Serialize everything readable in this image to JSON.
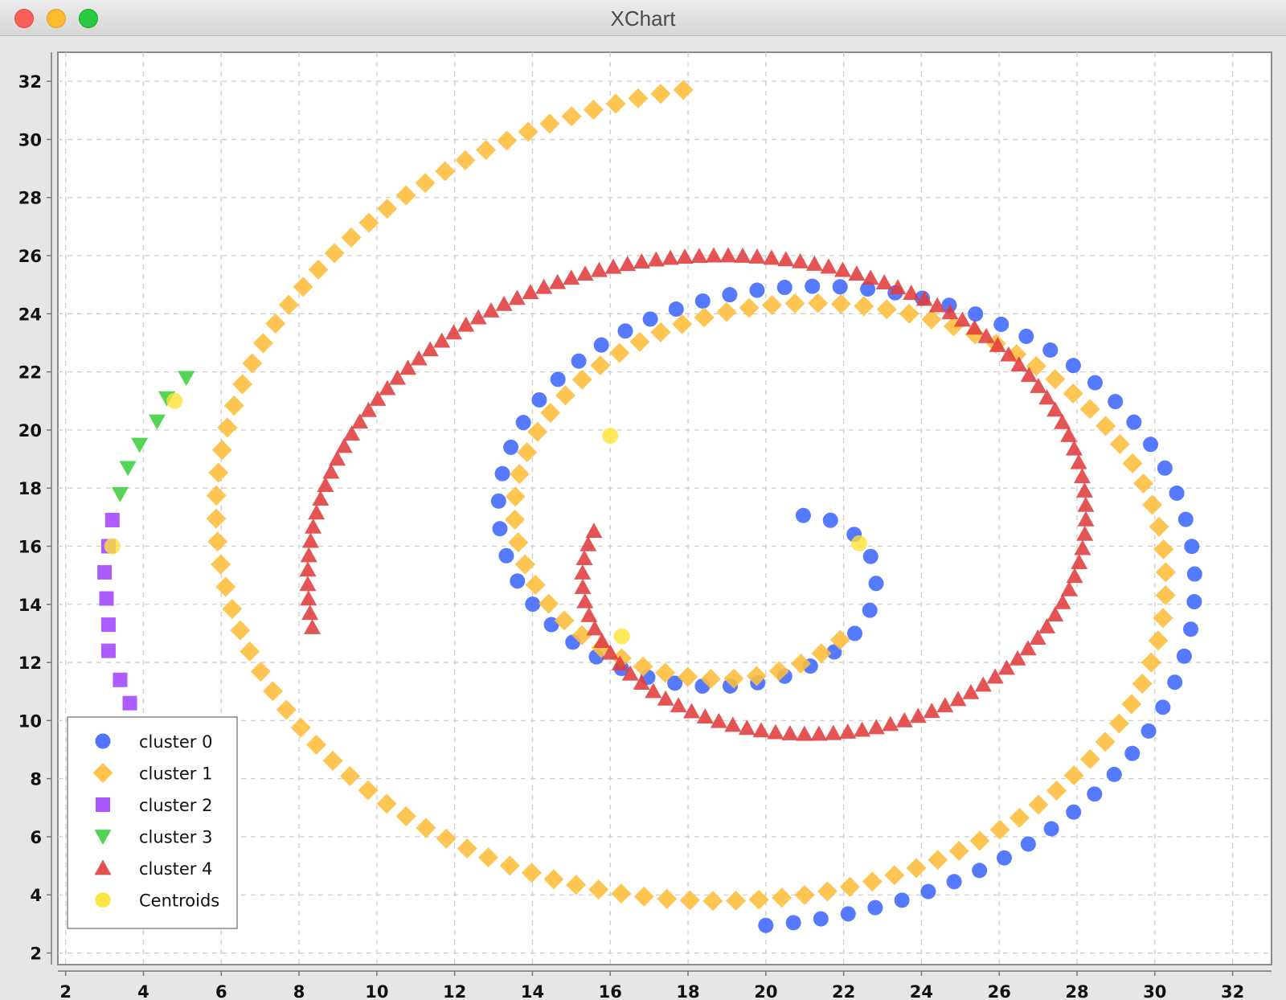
{
  "window": {
    "title": "XChart"
  },
  "chart_data": {
    "type": "scatter",
    "title": "",
    "xlabel": "",
    "ylabel": "",
    "xlim": [
      1.8,
      33.0
    ],
    "ylim": [
      1.6,
      33.0
    ],
    "x_ticks": [
      2,
      4,
      6,
      8,
      10,
      12,
      14,
      16,
      18,
      20,
      22,
      24,
      26,
      28,
      30,
      32
    ],
    "y_ticks": [
      2,
      4,
      6,
      8,
      10,
      12,
      14,
      16,
      18,
      20,
      22,
      24,
      26,
      28,
      30,
      32
    ],
    "grid": true,
    "legend_position": "bottom-left",
    "series": [
      {
        "name": "cluster 0",
        "marker": "circle",
        "color": "#3d67ff",
        "spiral": {
          "a0": -1.5708,
          "r0": 13.05,
          "a1": 7.115,
          "r1": 1.43,
          "cx": 20.0,
          "cy": 16.0,
          "n": 80
        }
      },
      {
        "name": "cluster 1",
        "marker": "diamond",
        "color": "#ffbd3b",
        "spiral": {
          "a0": 1.705,
          "r0": 15.85,
          "a1": 11.53,
          "r1": 3.75,
          "cx": 20.0,
          "cy": 16.0,
          "n": 145
        }
      },
      {
        "name": "cluster 2",
        "marker": "square",
        "color": "#a146ff",
        "points": [
          [
            3.2,
            16.9
          ],
          [
            3.1,
            16.0
          ],
          [
            3.0,
            15.1
          ],
          [
            3.05,
            14.2
          ],
          [
            3.1,
            13.3
          ],
          [
            3.1,
            12.4
          ],
          [
            3.4,
            11.4
          ],
          [
            3.65,
            10.6
          ],
          [
            3.95,
            9.6
          ]
        ]
      },
      {
        "name": "cluster 3",
        "marker": "triangle-down",
        "color": "#3ecf3e",
        "points": [
          [
            5.1,
            21.8
          ],
          [
            4.6,
            21.1
          ],
          [
            4.35,
            20.3
          ],
          [
            3.9,
            19.5
          ],
          [
            3.6,
            18.7
          ],
          [
            3.4,
            17.8
          ]
        ]
      },
      {
        "name": "cluster 4",
        "marker": "triangle-up",
        "color": "#e03c3c",
        "spiral": {
          "a0": 3.025,
          "r0": 4.45,
          "a1": 9.66,
          "r1": 11.99,
          "cx": 20.0,
          "cy": 16.0,
          "n": 130
        }
      },
      {
        "name": "Centroids",
        "marker": "circle",
        "color": "#ffe233",
        "points": [
          [
            4.8,
            21.0
          ],
          [
            3.2,
            16.0
          ],
          [
            16.0,
            19.8
          ],
          [
            16.3,
            12.9
          ],
          [
            22.4,
            16.1
          ]
        ]
      }
    ]
  }
}
